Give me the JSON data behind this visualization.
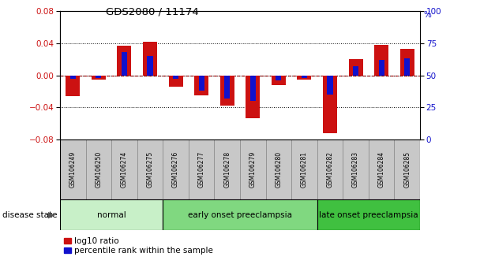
{
  "title": "GDS2080 / 11174",
  "samples": [
    "GSM106249",
    "GSM106250",
    "GSM106274",
    "GSM106275",
    "GSM106276",
    "GSM106277",
    "GSM106278",
    "GSM106279",
    "GSM106280",
    "GSM106281",
    "GSM106282",
    "GSM106283",
    "GSM106284",
    "GSM106285"
  ],
  "log10_ratio": [
    -0.026,
    -0.005,
    0.037,
    0.042,
    -0.014,
    -0.025,
    -0.038,
    -0.053,
    -0.012,
    -0.005,
    -0.072,
    0.02,
    0.038,
    0.033
  ],
  "percentile_rank": [
    47,
    48,
    68,
    65,
    47,
    38,
    32,
    30,
    46,
    48,
    35,
    57,
    62,
    63
  ],
  "groups": [
    {
      "label": "normal",
      "start": 0,
      "end": 4,
      "color": "#c8f0c8"
    },
    {
      "label": "early onset preeclampsia",
      "start": 4,
      "end": 10,
      "color": "#80d880"
    },
    {
      "label": "late onset preeclampsia",
      "start": 10,
      "end": 14,
      "color": "#40c040"
    }
  ],
  "ylim_left": [
    -0.08,
    0.08
  ],
  "ylim_right": [
    0,
    100
  ],
  "yticks_left": [
    -0.08,
    -0.04,
    0,
    0.04,
    0.08
  ],
  "yticks_right": [
    0,
    25,
    50,
    75,
    100
  ],
  "bar_color_red": "#cc1111",
  "bar_color_blue": "#1111cc",
  "zero_line_color": "#cc0000",
  "tick_label_area_color": "#c8c8c8",
  "disease_state_label": "disease state",
  "legend_items": [
    "log10 ratio",
    "percentile rank within the sample"
  ]
}
